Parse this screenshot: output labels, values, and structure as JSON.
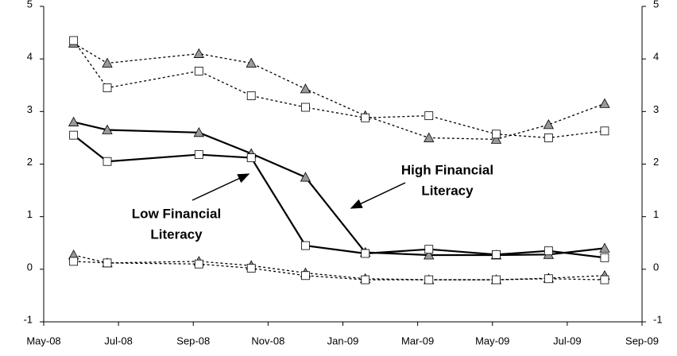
{
  "chart_data": {
    "type": "line",
    "x": [
      0.8,
      1.7,
      4.15,
      5.55,
      7.0,
      8.6,
      10.3,
      12.1,
      13.5,
      15.0
    ],
    "xlim": [
      0,
      16
    ],
    "xticks": [
      {
        "value": 0,
        "label": "May-08"
      },
      {
        "value": 2,
        "label": "Jul-08"
      },
      {
        "value": 4,
        "label": "Sep-08"
      },
      {
        "value": 6,
        "label": "Nov-08"
      },
      {
        "value": 8,
        "label": "Jan-09"
      },
      {
        "value": 10,
        "label": "Mar-09"
      },
      {
        "value": 12,
        "label": "May-09"
      },
      {
        "value": 14,
        "label": "Jul-09"
      },
      {
        "value": 16,
        "label": "Sep-09"
      }
    ],
    "ylim": [
      -1,
      5
    ],
    "yticks": [
      -1,
      0,
      1,
      2,
      3,
      4,
      5
    ],
    "y2lim": [
      -1,
      5
    ],
    "y2ticks": [
      -1,
      0,
      1,
      2,
      3,
      4,
      5
    ],
    "series": [
      {
        "color": "#000000",
        "marker": "triangle",
        "dash": false,
        "values": [
          2.8,
          2.65,
          2.6,
          2.2,
          1.75,
          0.32,
          0.27,
          0.27,
          0.28,
          0.4
        ]
      },
      {
        "color": "#000000",
        "marker": "square",
        "dash": false,
        "values": [
          2.55,
          2.05,
          2.18,
          2.12,
          0.45,
          0.3,
          0.38,
          0.28,
          0.35,
          0.22
        ]
      },
      {
        "color": "#000000",
        "marker": "triangle",
        "dash": true,
        "values": [
          4.3,
          3.92,
          4.1,
          3.92,
          3.43,
          2.92,
          2.5,
          2.47,
          2.75,
          3.15
        ]
      },
      {
        "color": "#000000",
        "marker": "square",
        "dash": true,
        "values": [
          4.35,
          3.45,
          3.77,
          3.3,
          3.08,
          2.88,
          2.92,
          2.57,
          2.5,
          2.63
        ]
      },
      {
        "color": "#000000",
        "marker": "triangle",
        "dash": true,
        "values": [
          0.27,
          0.12,
          0.15,
          0.07,
          -0.07,
          -0.18,
          -0.2,
          -0.2,
          -0.17,
          -0.12
        ]
      },
      {
        "color": "#000000",
        "marker": "square",
        "dash": true,
        "values": [
          0.15,
          0.12,
          0.1,
          0.02,
          -0.12,
          -0.2,
          -0.2,
          -0.2,
          -0.18,
          -0.2
        ]
      }
    ],
    "annotations": [
      {
        "lines": [
          "High Financial",
          "Literacy"
        ]
      },
      {
        "lines": [
          "Low Financial",
          "Literacy"
        ]
      }
    ]
  }
}
